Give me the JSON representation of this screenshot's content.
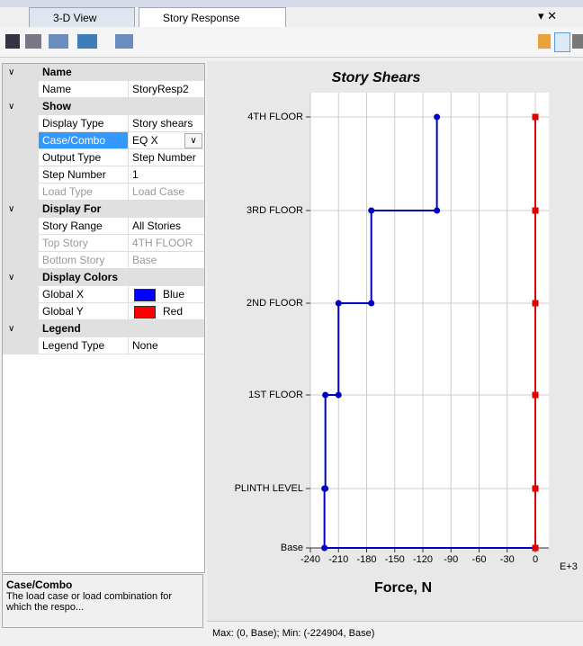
{
  "tabs": [
    "3-D View",
    "Story Response"
  ],
  "properties": {
    "sections": [
      {
        "title": "Name",
        "rows": [
          {
            "label": "Name",
            "value": "StoryResp2"
          }
        ]
      },
      {
        "title": "Show",
        "rows": [
          {
            "label": "Display Type",
            "value": "Story shears"
          },
          {
            "label": "Case/Combo",
            "value": "EQ X",
            "selected": true
          },
          {
            "label": "Output Type",
            "value": "Step Number"
          },
          {
            "label": "Step Number",
            "value": "1"
          },
          {
            "label": "Load Type",
            "value": "Load Case",
            "disabled": true
          }
        ]
      },
      {
        "title": "Display For",
        "rows": [
          {
            "label": "Story Range",
            "value": "All Stories"
          },
          {
            "label": "Top Story",
            "value": "4TH FLOOR",
            "disabled": true
          },
          {
            "label": "Bottom Story",
            "value": "Base",
            "disabled": true
          }
        ]
      },
      {
        "title": "Display Colors",
        "rows": [
          {
            "label": "Global X",
            "value": "Blue",
            "color": "#0000ff"
          },
          {
            "label": "Global Y",
            "value": "Red",
            "color": "#ff0000"
          }
        ]
      },
      {
        "title": "Legend",
        "rows": [
          {
            "label": "Legend Type",
            "value": "None"
          }
        ]
      }
    ]
  },
  "description": {
    "title": "Case/Combo",
    "text": "The load case or load combination for which the respo..."
  },
  "chart_data": {
    "type": "line",
    "title": "Story Shears",
    "x_label": "Force, N",
    "x_unit": "E+3",
    "categories": [
      "Base",
      "PLINTH LEVEL",
      "1ST FLOOR",
      "2ND FLOOR",
      "3RD FLOOR",
      "4TH FLOOR"
    ],
    "series": [
      {
        "name": "Global X",
        "color": "#0000c0",
        "values": [
          0,
          -225,
          -224,
          -210,
          -175,
          -105
        ],
        "stepped": true
      },
      {
        "name": "Global Y",
        "color": "#e00000",
        "values": [
          0,
          0,
          0,
          0,
          0,
          0
        ]
      }
    ],
    "xlim": [
      -240,
      0
    ],
    "xticks": [
      -240,
      -210,
      -180,
      -150,
      -120,
      -90,
      -60,
      -30,
      0
    ],
    "grid": true
  },
  "status": "Max: (0, Base);  Min: (-224904, Base)"
}
